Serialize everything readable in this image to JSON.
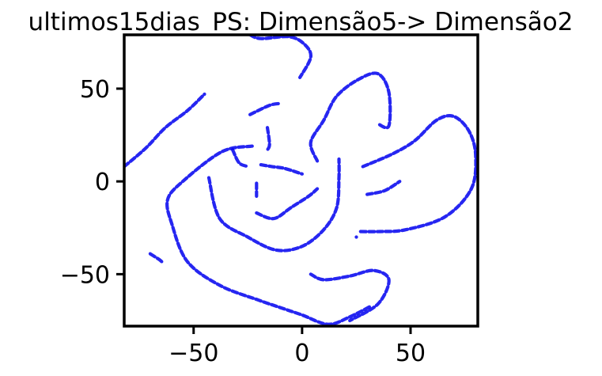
{
  "chart_data": {
    "type": "scatter",
    "title": "ultimos15dias_PS: Dimensão5-> Dimensão2",
    "xlabel": "",
    "ylabel": "",
    "xlim": [
      -82,
      81
    ],
    "ylim": [
      -78,
      79
    ],
    "grid": false,
    "legend": "none",
    "marker_color": "#0000ee",
    "x_ticks": [
      {
        "value": -50,
        "label": "−50"
      },
      {
        "value": 0,
        "label": "0"
      },
      {
        "value": 50,
        "label": "50"
      }
    ],
    "y_ticks": [
      {
        "value": 50,
        "label": "50"
      },
      {
        "value": 0,
        "label": "0"
      },
      {
        "value": -50,
        "label": "−50"
      }
    ],
    "series": [
      {
        "points": [
          [
            -82,
            8
          ],
          [
            -72,
            18
          ],
          [
            -63,
            29
          ],
          [
            -53,
            38
          ],
          [
            -45,
            47
          ]
        ]
      },
      {
        "points": [
          [
            -24,
            36
          ],
          [
            -15,
            41
          ],
          [
            -10,
            42
          ]
        ]
      },
      {
        "points": [
          [
            -23,
            19
          ],
          [
            -37,
            16
          ],
          [
            -55,
            0
          ],
          [
            -62,
            -10
          ],
          [
            -60,
            -23
          ],
          [
            -53,
            -43
          ],
          [
            -38,
            -56
          ],
          [
            -20,
            -64
          ],
          [
            -10,
            -68
          ],
          [
            0,
            -72
          ],
          [
            12,
            -77
          ],
          [
            22,
            -73
          ],
          [
            32,
            -67
          ]
        ]
      },
      {
        "points": [
          [
            -19,
            9
          ],
          [
            -14,
            8
          ],
          [
            -8,
            7
          ],
          [
            0,
            4
          ]
        ]
      },
      {
        "points": [
          [
            -32,
            17
          ],
          [
            -29,
            10
          ],
          [
            -25,
            8
          ]
        ]
      },
      {
        "points": [
          [
            -16,
            29
          ],
          [
            -15,
            20
          ],
          [
            -16,
            17
          ]
        ]
      },
      {
        "points": [
          [
            -21,
            -1
          ],
          [
            -21,
            -6
          ],
          [
            -21,
            -8
          ]
        ]
      },
      {
        "points": [
          [
            -43,
            2
          ],
          [
            -38,
            -20
          ],
          [
            -25,
            -30
          ],
          [
            -12,
            -37
          ],
          [
            0,
            -35
          ],
          [
            10,
            -26
          ],
          [
            16,
            -14
          ],
          [
            17,
            2
          ],
          [
            17,
            12
          ]
        ]
      },
      {
        "points": [
          [
            -21,
            -17
          ],
          [
            -13,
            -20
          ],
          [
            -5,
            -14
          ],
          [
            3,
            -8
          ],
          [
            7,
            -4
          ]
        ]
      },
      {
        "points": [
          [
            -24,
            79
          ],
          [
            -19,
            77
          ],
          [
            -6,
            78
          ],
          [
            1,
            74
          ],
          [
            4,
            67
          ],
          [
            -1,
            56
          ]
        ]
      },
      {
        "points": [
          [
            7,
            11
          ],
          [
            4,
            21
          ],
          [
            10,
            33
          ],
          [
            16,
            46
          ],
          [
            26,
            55
          ],
          [
            35,
            58
          ],
          [
            40,
            48
          ],
          [
            40,
            30
          ],
          [
            35,
            31
          ]
        ]
      },
      {
        "points": [
          [
            28,
            8
          ],
          [
            42,
            15
          ],
          [
            52,
            22
          ],
          [
            62,
            33
          ],
          [
            70,
            35
          ],
          [
            77,
            27
          ],
          [
            80,
            14
          ],
          [
            78,
            -4
          ],
          [
            66,
            -19
          ],
          [
            48,
            -26
          ],
          [
            36,
            -27
          ],
          [
            26,
            -27
          ]
        ]
      },
      {
        "points": [
          [
            25,
            -30
          ],
          [
            25,
            -30
          ]
        ]
      },
      {
        "points": [
          [
            30,
            -7
          ],
          [
            38,
            -5
          ],
          [
            45,
            0
          ]
        ]
      },
      {
        "points": [
          [
            4,
            -50
          ],
          [
            10,
            -53
          ],
          [
            22,
            -51
          ],
          [
            33,
            -48
          ],
          [
            40,
            -53
          ],
          [
            35,
            -66
          ],
          [
            22,
            -75
          ]
        ]
      },
      {
        "points": [
          [
            -70,
            -39
          ],
          [
            -66,
            -42
          ],
          [
            -64,
            -44
          ]
        ]
      }
    ]
  }
}
